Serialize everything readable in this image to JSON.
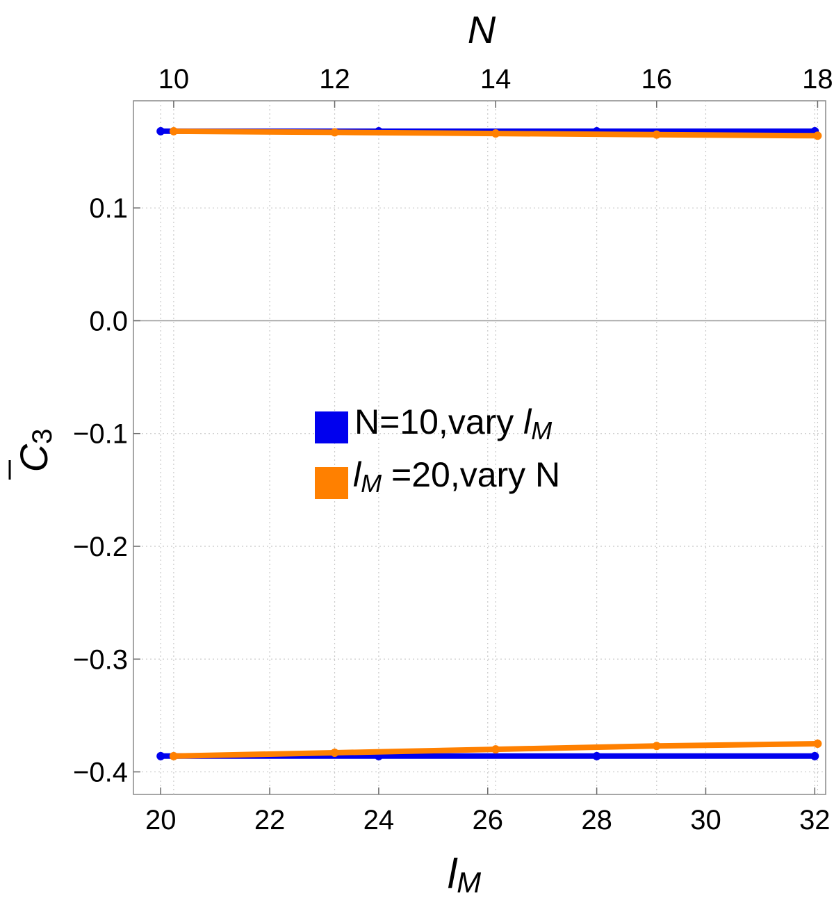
{
  "chart_data": {
    "type": "line",
    "title": "",
    "xlabel": {
      "main": "l",
      "sub": "M"
    },
    "x2label": "N",
    "ylabel": {
      "main": "C",
      "sub": "3"
    },
    "xlim": [
      19.5,
      32.2
    ],
    "x2lim": [
      9.5,
      18.1
    ],
    "ylim": [
      -0.42,
      0.195
    ],
    "xticks": [
      "20",
      "22",
      "24",
      "26",
      "28",
      "30",
      "32"
    ],
    "x2ticks": [
      "10",
      "12",
      "14",
      "16",
      "18"
    ],
    "yticks": [
      "−0.4",
      "−0.3",
      "−0.2",
      "−0.1",
      "0.0",
      "0.1"
    ],
    "grid": true,
    "legend_position": "center",
    "series": [
      {
        "name": "N=10,vary l_M",
        "color": "#0000ee",
        "axis": "bottom",
        "x": [
          20,
          24,
          28,
          32
        ],
        "y_upper": [
          0.168,
          0.168,
          0.168,
          0.168
        ],
        "y_lower": [
          -0.386,
          -0.386,
          -0.386,
          -0.386
        ]
      },
      {
        "name": "l_M =20,vary N",
        "color": "#ff8000",
        "axis": "top",
        "x": [
          10,
          12,
          14,
          16,
          18
        ],
        "y_upper": [
          0.168,
          0.167,
          0.166,
          0.165,
          0.164
        ],
        "y_lower": [
          -0.386,
          -0.383,
          -0.38,
          -0.377,
          -0.375
        ]
      }
    ]
  },
  "legend": {
    "item1": {
      "prefix": "N=10,vary ",
      "var": "l",
      "sub": "M",
      "suffix": ""
    },
    "item2": {
      "prefix": "",
      "var": "l",
      "sub": "M",
      "suffix": " =20,vary N"
    }
  }
}
